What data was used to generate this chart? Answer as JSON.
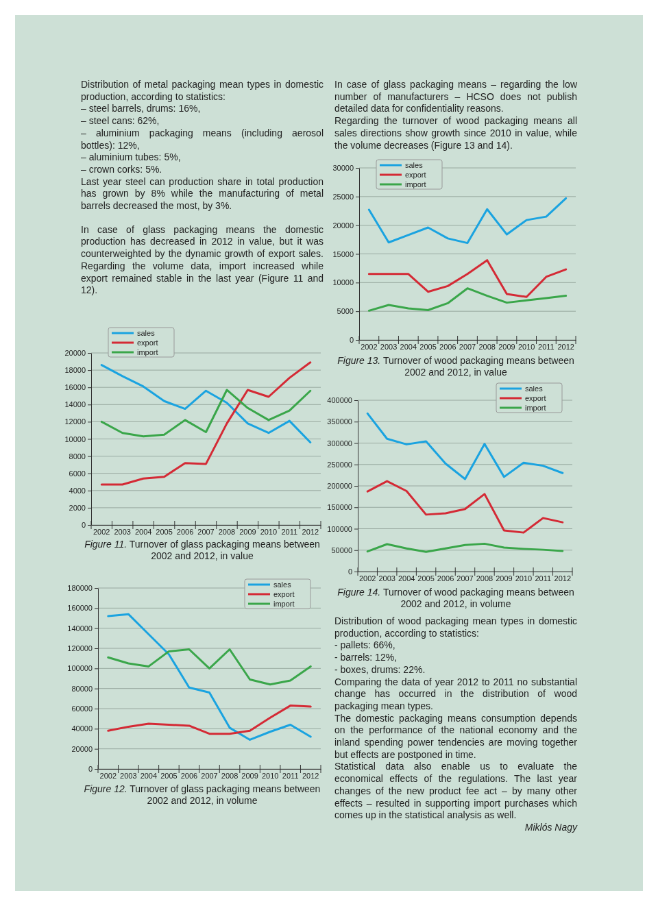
{
  "chart_data": [
    {
      "type": "other",
      "annotations": [
        "Distribution of metal packaging mean types in domestic production, according to statistics:",
        "– steel barrels, drums: 16%,",
        "– steel cans: 62%,",
        "– aluminium packaging means (including aerosol bottles): 12%,",
        "– aluminium tubes: 5%,",
        "– crown corks: 5%.",
        "Last year steel can production share in total production has grown by 8% while the manufacturing of metal barrels decreased the most, by 3%.",
        "In case of glass packaging means the domestic production has decreased in 2012 in value, but it was counterweighted by the dynamic growth of export sales. Regarding the volume data, import increased while export remained stable in the last year (Figure 11 and 12)."
      ]
    },
    {
      "type": "line",
      "title": "Figure 11. Turnover of glass packaging means between 2002 and 2012, in value",
      "categories": [
        "2002",
        "2003",
        "2004",
        "2005",
        "2006",
        "2007",
        "2008",
        "2009",
        "2010",
        "2011",
        "2012"
      ],
      "ylim": [
        0,
        20000
      ],
      "yticks": [
        0,
        2000,
        4000,
        6000,
        8000,
        10000,
        12000,
        14000,
        16000,
        18000,
        20000
      ],
      "grid": "y",
      "legend": "top left",
      "series": [
        {
          "name": "sales",
          "color": "#1aa3e0",
          "values": [
            18600,
            17300,
            16100,
            14400,
            13500,
            15600,
            14200,
            11800,
            10700,
            12100,
            9600
          ]
        },
        {
          "name": "export",
          "color": "#d42a35",
          "values": [
            4700,
            4700,
            5400,
            5600,
            7200,
            7100,
            11800,
            15700,
            14900,
            17100,
            18900
          ]
        },
        {
          "name": "import",
          "color": "#3aa64a",
          "values": [
            12000,
            10700,
            10300,
            10500,
            12200,
            10800,
            15700,
            13600,
            12200,
            13300,
            15600
          ]
        }
      ]
    },
    {
      "type": "line",
      "title": "Figure 12. Turnover of glass packaging means between 2002 and 2012, in volume",
      "categories": [
        "2002",
        "2003",
        "2004",
        "2005",
        "2006",
        "2007",
        "2008",
        "2009",
        "2010",
        "2011",
        "2012"
      ],
      "ylim": [
        0,
        180000
      ],
      "yticks": [
        0,
        20000,
        40000,
        60000,
        80000,
        100000,
        120000,
        140000,
        160000,
        180000
      ],
      "grid": "y",
      "legend": "top right",
      "series": [
        {
          "name": "sales",
          "color": "#1aa3e0",
          "values": [
            152000,
            154000,
            134000,
            114000,
            81000,
            76000,
            41000,
            29000,
            37000,
            44000,
            32000
          ]
        },
        {
          "name": "export",
          "color": "#d42a35",
          "values": [
            38000,
            42000,
            45000,
            44000,
            43000,
            35000,
            35000,
            38000,
            51000,
            63000,
            62000
          ]
        },
        {
          "name": "import",
          "color": "#3aa64a",
          "values": [
            111000,
            105000,
            102000,
            117000,
            119000,
            100000,
            119000,
            89000,
            84000,
            88000,
            102000
          ]
        }
      ]
    },
    {
      "type": "other",
      "annotations": [
        "In case of glass packaging means – regarding the low number of manufacturers – HCSO does not publish detailed data for confidentiality reasons.",
        "Regarding the turnover of wood packaging means all sales directions show growth since 2010 in value, while the volume decreases (Figure 13 and 14)."
      ]
    },
    {
      "type": "line",
      "title": "Figure 13. Turnover of wood packaging means between 2002 and 2012, in value",
      "categories": [
        "2002",
        "2003",
        "2004",
        "2005",
        "2006",
        "2007",
        "2008",
        "2009",
        "2010",
        "2011",
        "2012"
      ],
      "ylim": [
        0,
        30000
      ],
      "yticks": [
        0,
        5000,
        10000,
        15000,
        20000,
        25000,
        30000
      ],
      "grid": "y",
      "legend": "top left",
      "series": [
        {
          "name": "sales",
          "color": "#1aa3e0",
          "values": [
            22700,
            17000,
            18300,
            19600,
            17700,
            16900,
            22800,
            18400,
            20900,
            21500,
            24700
          ]
        },
        {
          "name": "export",
          "color": "#d42a35",
          "values": [
            11500,
            11500,
            11500,
            8400,
            9400,
            11500,
            13900,
            8000,
            7500,
            11000,
            12300
          ]
        },
        {
          "name": "import",
          "color": "#3aa64a",
          "values": [
            5100,
            6100,
            5500,
            5200,
            6400,
            9000,
            7700,
            6500,
            6900,
            7300,
            7700
          ]
        }
      ]
    },
    {
      "type": "line",
      "title": "Figure 14. Turnover of wood packaging means between 2002 and 2012, in volume",
      "categories": [
        "2002",
        "2003",
        "2004",
        "2005",
        "2006",
        "2007",
        "2008",
        "2009",
        "2010",
        "2011",
        "2012"
      ],
      "ylim": [
        0,
        400000
      ],
      "yticks": [
        0,
        50000,
        100000,
        150000,
        200000,
        250000,
        300000,
        350000,
        400000
      ],
      "grid": "y",
      "legend": "top right",
      "series": [
        {
          "name": "sales",
          "color": "#1aa3e0",
          "values": [
            369000,
            310000,
            297000,
            304000,
            252000,
            216000,
            298000,
            221000,
            254000,
            247000,
            230000
          ]
        },
        {
          "name": "export",
          "color": "#d42a35",
          "values": [
            187000,
            211000,
            188000,
            133000,
            136000,
            146000,
            181000,
            96000,
            91000,
            125000,
            115000
          ]
        },
        {
          "name": "import",
          "color": "#3aa64a",
          "values": [
            47000,
            64000,
            54000,
            46000,
            54000,
            62000,
            65000,
            56000,
            53000,
            51000,
            48000
          ]
        }
      ]
    },
    {
      "type": "other",
      "annotations": [
        "Distribution of wood packaging mean types in domestic production, according to statistics:",
        "- pallets: 66%,",
        "- barrels: 12%,",
        "- boxes, drums: 22%.",
        "Comparing the data of year 2012 to 2011 no substantial change has occurred in the distribution of wood packaging mean types.",
        "The domestic packaging means consumption depends on the performance of the national economy and the inland spending power tendencies are moving together but effects are postponed in time.",
        "Statistical data also enable us to evaluate the economical effects of the regulations. The last year changes of the new product fee act – by many other effects – resulted in supporting import purchases which comes up in the statistical analysis as well.",
        "Miklós Nagy"
      ]
    }
  ]
}
